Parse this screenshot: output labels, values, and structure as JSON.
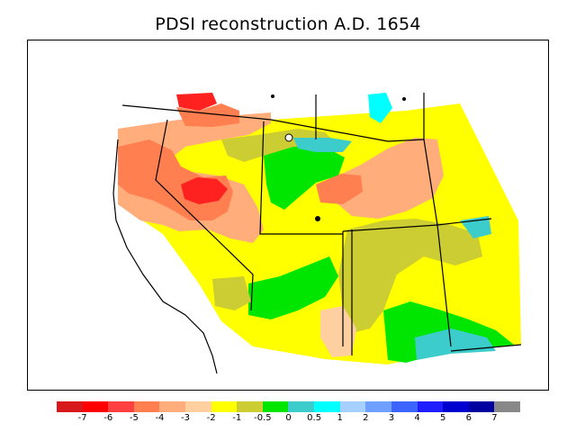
{
  "title": "PDSI reconstruction A.D. 1654",
  "legend": {
    "colors": [
      "#d7191c",
      "#ff0000",
      "#ff4040",
      "#ff7f50",
      "#ffad7a",
      "#ffcfa0",
      "#ffff00",
      "#cccc33",
      "#00e600",
      "#3ccccc",
      "#00ffff",
      "#a6d0ff",
      "#6fa0ff",
      "#3c64ff",
      "#1e1eff",
      "#0000d0",
      "#0000a0",
      "#888888"
    ],
    "labels": [
      "-7",
      "-6",
      "-5",
      "-4",
      "-3",
      "-2",
      "-1",
      "-0.5",
      "0",
      "0.5",
      "1",
      "2",
      "3",
      "4",
      "5",
      "6",
      "7"
    ]
  },
  "palette": {
    "dark_red": "#ff2020",
    "orange": "#ff7f50",
    "salmon": "#f5a07a",
    "peach": "#ffcfa0",
    "yellow": "#ffff00",
    "olive": "#cccc33",
    "green": "#00e600",
    "teal": "#3ccccc",
    "cyan": "#00ffff",
    "light_blue": "#a6d0ff"
  }
}
